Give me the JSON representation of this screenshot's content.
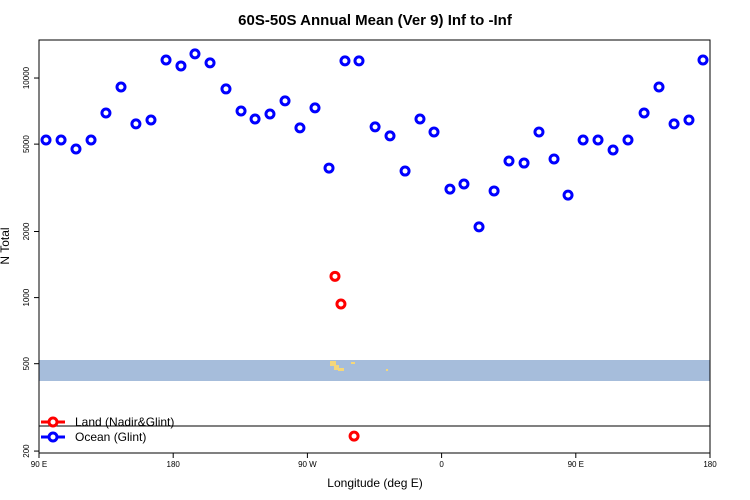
{
  "chart_data": {
    "type": "scatter",
    "title": "60S-50S Annual Mean (Ver 9)   Inf to -Inf",
    "x_label": "Longitude (deg E)",
    "y_label": "N Total",
    "xlim": [
      90,
      540
    ],
    "xticks": [
      {
        "value": 90,
        "label": "90 E"
      },
      {
        "value": 180,
        "label": "180"
      },
      {
        "value": 270,
        "label": "90 W"
      },
      {
        "value": 360,
        "label": "0"
      },
      {
        "value": 450,
        "label": "90 E"
      },
      {
        "value": 540,
        "label": "180"
      }
    ],
    "ylim": [
      196,
      14900
    ],
    "ylog": true,
    "yticks": [
      200,
      500,
      1000,
      2000,
      5000,
      10000
    ],
    "legend": "bottom-left",
    "series": [
      {
        "name": "Land (Nadir&Glint)",
        "color": "#ff0000",
        "x": [
          288.5,
          292.5,
          301.3
        ],
        "values": [
          1250,
          935,
          234
        ]
      },
      {
        "name": "Ocean (Glint)",
        "color": "#0000ff",
        "x": [
          94.7,
          104.8,
          114.8,
          124.9,
          134.9,
          145,
          155,
          165.1,
          175.2,
          185.2,
          194.6,
          204.7,
          215.4,
          225.5,
          234.9,
          244.9,
          255,
          265,
          275.1,
          284.5,
          295.2,
          304.6,
          315.4,
          325.4,
          335.5,
          345.5,
          354.9,
          365.6,
          375,
          385.1,
          395.2,
          405.2,
          415.3,
          425.3,
          435.4,
          444.8,
          454.9,
          464.9,
          475,
          485,
          495.8,
          505.8,
          515.9,
          525.9,
          535.3
        ],
        "values": [
          5220,
          5220,
          4750,
          5220,
          6930,
          9100,
          6180,
          6440,
          12080,
          11350,
          12880,
          11720,
          8920,
          7080,
          6510,
          6860,
          7870,
          5930,
          7310,
          3890,
          11970,
          11970,
          5990,
          5450,
          3770,
          6510,
          5680,
          3120,
          3290,
          2100,
          3060,
          4190,
          4100,
          5680,
          4280,
          2930,
          5220,
          5220,
          4700,
          5220,
          6930,
          9100,
          6180,
          6440,
          12080
        ]
      }
    ]
  }
}
